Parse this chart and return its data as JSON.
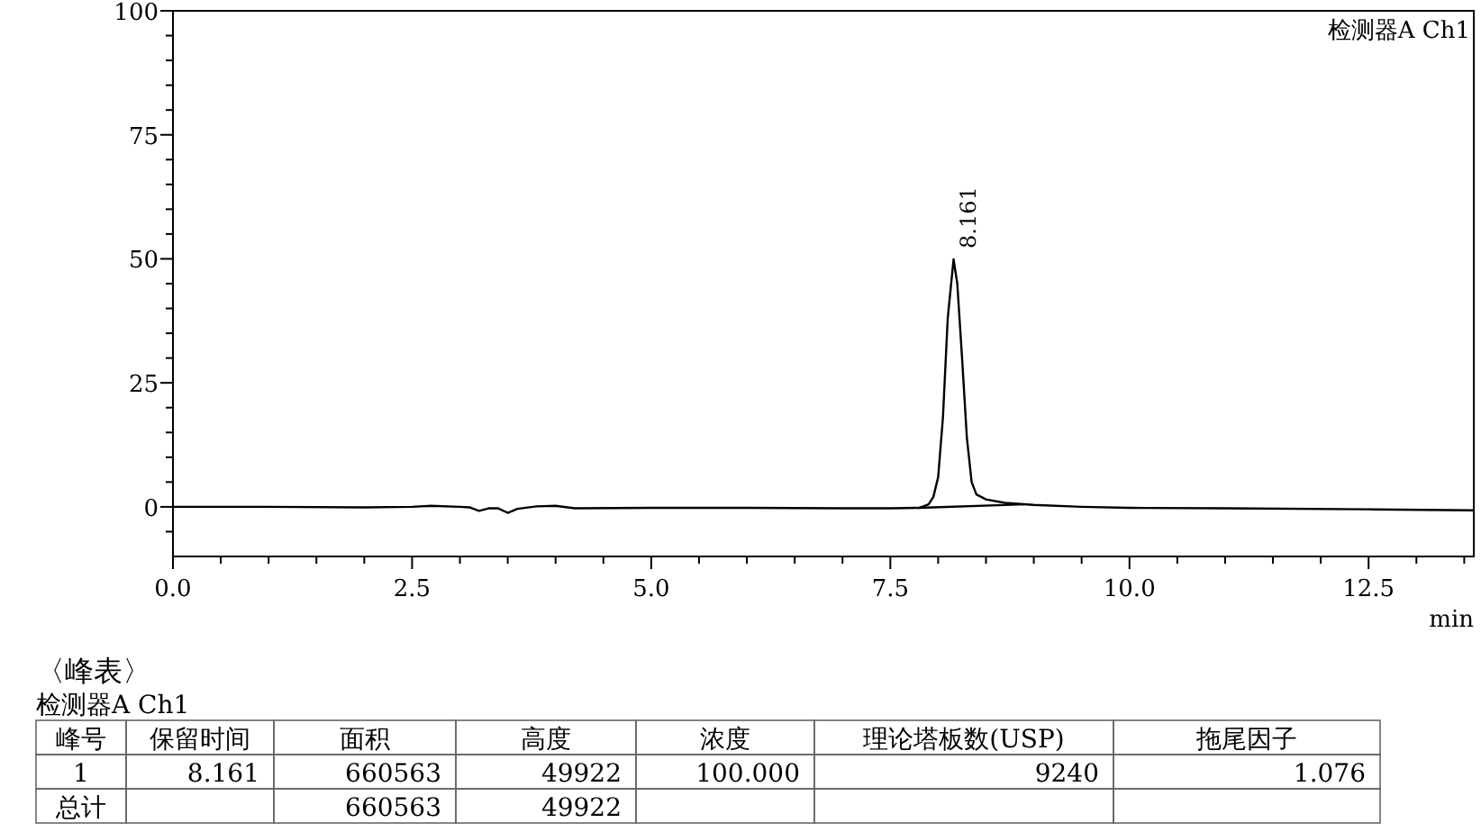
{
  "chart_data": [
    {
      "type": "line",
      "xlabel": "min",
      "annotations": [
        {
          "text": "8.161",
          "x": 8.161,
          "y": 49.9
        },
        "检测器A Ch1"
      ],
      "series": [
        {
          "color": "#000000",
          "x": [
            0,
            1,
            2,
            2.5,
            2.7,
            3.0,
            3.1,
            3.2,
            3.3,
            3.4,
            3.5,
            3.6,
            3.8,
            4.0,
            4.2,
            5.0,
            6.0,
            7.0,
            7.5,
            7.8,
            7.9,
            7.95,
            8.0,
            8.05,
            8.1,
            8.161,
            8.2,
            8.25,
            8.3,
            8.35,
            8.4,
            8.5,
            8.7,
            9.0,
            9.5,
            10.0,
            11.0,
            12.5,
            13.6
          ],
          "values": [
            0,
            0,
            -0.1,
            0,
            0.2,
            0,
            -0.1,
            -0.8,
            -0.3,
            -0.3,
            -1.2,
            -0.4,
            0.1,
            0.2,
            -0.3,
            -0.2,
            -0.2,
            -0.3,
            -0.3,
            -0.2,
            0.5,
            2,
            6,
            18,
            38,
            49.9,
            45,
            30,
            14,
            5,
            2.5,
            1.5,
            0.8,
            0.4,
            0,
            -0.2,
            -0.3,
            -0.5,
            -0.7
          ]
        },
        {
          "color": "#000000",
          "x": [
            7.8,
            8.9
          ],
          "values": [
            -0.2,
            0.5
          ]
        }
      ],
      "xlim": [
        0,
        13.6
      ],
      "ylim": [
        -10,
        100
      ],
      "xticks": [
        {
          "value": 0,
          "label": "0.0"
        },
        {
          "value": 0.5,
          "label": null
        },
        {
          "value": 1,
          "label": null
        },
        {
          "value": 1.5,
          "label": null
        },
        {
          "value": 2,
          "label": null
        },
        {
          "value": 2.5,
          "label": "2.5"
        },
        {
          "value": 3,
          "label": null
        },
        {
          "value": 3.5,
          "label": null
        },
        {
          "value": 4,
          "label": null
        },
        {
          "value": 4.5,
          "label": null
        },
        {
          "value": 5,
          "label": "5.0"
        },
        {
          "value": 5.5,
          "label": null
        },
        {
          "value": 6,
          "label": null
        },
        {
          "value": 6.5,
          "label": null
        },
        {
          "value": 7,
          "label": null
        },
        {
          "value": 7.5,
          "label": "7.5"
        },
        {
          "value": 8,
          "label": null
        },
        {
          "value": 8.5,
          "label": null
        },
        {
          "value": 9,
          "label": null
        },
        {
          "value": 9.5,
          "label": null
        },
        {
          "value": 10,
          "label": "10.0"
        },
        {
          "value": 10.5,
          "label": null
        },
        {
          "value": 11,
          "label": null
        },
        {
          "value": 11.5,
          "label": null
        },
        {
          "value": 12,
          "label": null
        },
        {
          "value": 12.5,
          "label": "12.5"
        },
        {
          "value": 13,
          "label": null
        },
        {
          "value": 13.5,
          "label": null
        }
      ],
      "yticks": [
        {
          "value": -5,
          "label": null
        },
        0,
        {
          "value": 5,
          "label": null
        },
        {
          "value": 10,
          "label": null
        },
        {
          "value": 15,
          "label": null
        },
        {
          "value": 20,
          "label": null
        },
        25,
        {
          "value": 30,
          "label": null
        },
        {
          "value": 35,
          "label": null
        },
        {
          "value": 40,
          "label": null
        },
        {
          "value": 45,
          "label": null
        },
        50,
        {
          "value": 55,
          "label": null
        },
        {
          "value": 60,
          "label": null
        },
        {
          "value": 65,
          "label": null
        },
        {
          "value": 70,
          "label": null
        },
        75,
        {
          "value": 80,
          "label": null
        },
        {
          "value": 85,
          "label": null
        },
        {
          "value": 90,
          "label": null
        },
        {
          "value": 95,
          "label": null
        },
        100
      ],
      "grid": false,
      "marker": "none",
      "line_style": "solid"
    },
    {
      "type": "other",
      "title": "〈峰表〉",
      "subtitle": "检测器A Ch1",
      "categories": [
        "峰号",
        "保留时间",
        "面积",
        "高度",
        "浓度",
        "理论塔板数(USP)",
        "拖尾因子"
      ],
      "cell_labels": [
        [
          "1",
          "8.161",
          "660563",
          "49922",
          "100.000",
          "9240",
          "1.076"
        ],
        [
          "总计",
          null,
          "660563",
          "49922",
          null,
          null,
          null
        ]
      ]
    }
  ]
}
